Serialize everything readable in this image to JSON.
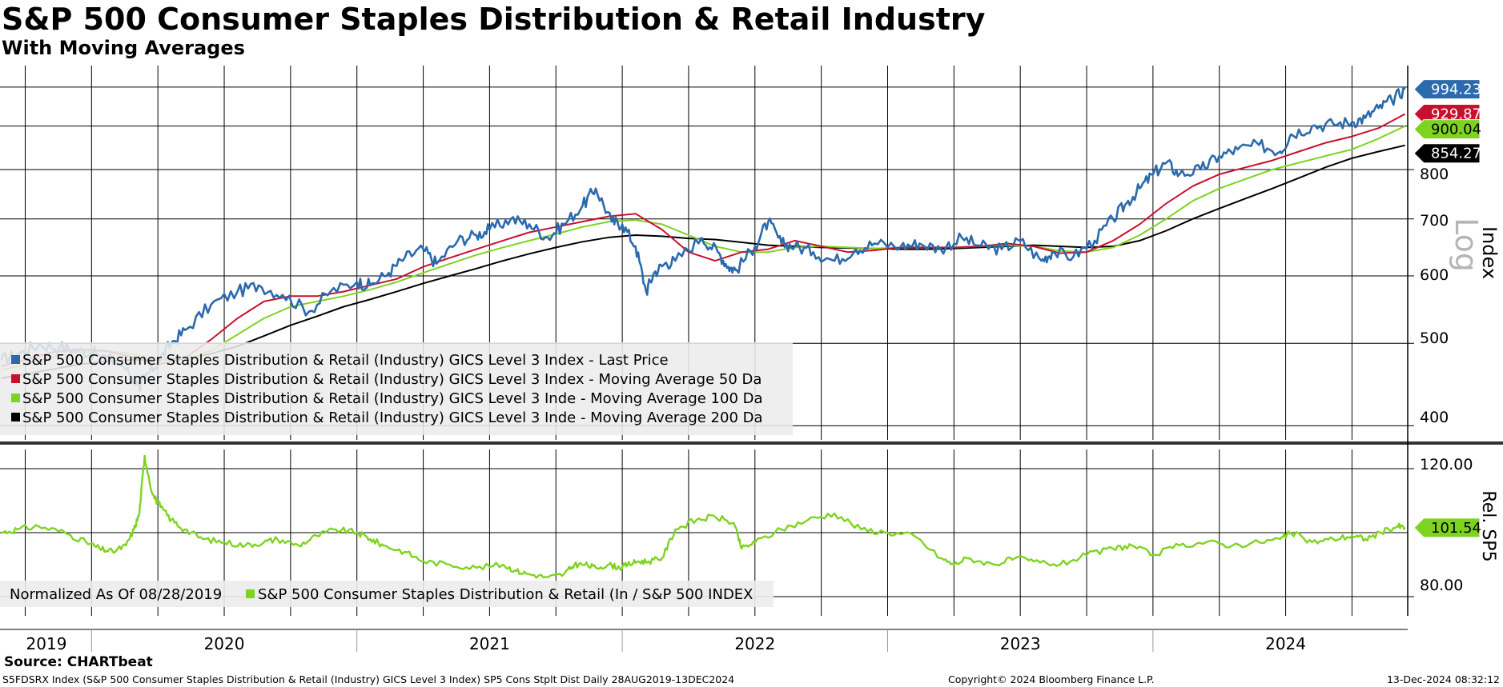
{
  "colors": {
    "last_price": "#2a6aad",
    "ma50": "#c8102e",
    "ma100": "#7ed321",
    "ma200": "#000000",
    "relative": "#7ed321",
    "grid": "#000000",
    "legend_bg": "#ececec"
  },
  "header": {
    "title": "S&P 500 Consumer Staples Distribution & Retail Industry",
    "subtitle": "With Moving Averages"
  },
  "footer": {
    "source": "Source: CHARTbeat",
    "description": "S5FDSRX Index (S&P 500 Consumer Staples Distribution & Retail (Industry) GICS Level 3 Index) SP5 Cons Stplt Dist  Daily 28AUG2019-13DEC2024",
    "copyright": "Copyright© 2024 Bloomberg Finance L.P.",
    "timestamp": "13-Dec-2024 08:32:12"
  },
  "chart_data": [
    {
      "type": "line",
      "panel": "upper",
      "title": "S&P 500 Consumer Staples Distribution & Retail Industry",
      "scale": "log",
      "scale_label": "Log",
      "ylabel": "Index",
      "ylim": [
        385,
        1060
      ],
      "yticks": [
        "400",
        "500",
        "600",
        "700",
        "800"
      ],
      "xrange": [
        2019.655,
        2024.96
      ],
      "year_labels": [
        "2019",
        "2020",
        "2021",
        "2022",
        "2023",
        "2024"
      ],
      "year_label_positions": [
        2019.83,
        2020.5,
        2021.5,
        2022.5,
        2023.5,
        2024.5
      ],
      "year_boundaries": [
        2020.0,
        2021.0,
        2022.0,
        2023.0,
        2024.0
      ],
      "quarter_grid": [
        2019.75,
        2020.0,
        2020.25,
        2020.5,
        2020.75,
        2021.0,
        2021.25,
        2021.5,
        2021.75,
        2022.0,
        2022.25,
        2022.5,
        2022.75,
        2023.0,
        2023.25,
        2023.5,
        2023.75,
        2024.0,
        2024.25,
        2024.5,
        2024.75
      ],
      "legend": [
        "S&P 500 Consumer Staples Distribution & Retail (Industry) GICS Level 3 Index - Last Price",
        "S&P 500 Consumer Staples Distribution & Retail (Industry) GICS Level 3 Index - Moving Average 50 Da",
        "S&P 500 Consumer Staples Distribution & Retail (Industry) GICS Level 3 Inde - Moving Average 100 Da",
        "S&P 500 Consumer Staples Distribution & Retail (Industry) GICS Level 3 Inde - Moving Average 200 Da"
      ],
      "series": [
        {
          "name": "Last Price",
          "color_key": "last_price",
          "end_label": "994.23",
          "x": [
            2019.66,
            2019.72,
            2019.8,
            2019.88,
            2019.95,
            2020.02,
            2020.12,
            2020.18,
            2020.2,
            2020.25,
            2020.3,
            2020.36,
            2020.45,
            2020.55,
            2020.63,
            2020.72,
            2020.82,
            2020.9,
            2021.0,
            2021.05,
            2021.12,
            2021.18,
            2021.25,
            2021.3,
            2021.38,
            2021.45,
            2021.5,
            2021.58,
            2021.65,
            2021.72,
            2021.78,
            2021.85,
            2021.9,
            2021.96,
            2022.0,
            2022.05,
            2022.09,
            2022.12,
            2022.16,
            2022.2,
            2022.3,
            2022.36,
            2022.4,
            2022.43,
            2022.5,
            2022.55,
            2022.6,
            2022.65,
            2022.72,
            2022.8,
            2022.88,
            2022.95,
            2023.05,
            2023.12,
            2023.2,
            2023.28,
            2023.35,
            2023.43,
            2023.5,
            2023.58,
            2023.62,
            2023.7,
            2023.78,
            2023.85,
            2023.9,
            2023.95,
            2024.0,
            2024.05,
            2024.1,
            2024.18,
            2024.25,
            2024.32,
            2024.4,
            2024.48,
            2024.52,
            2024.6,
            2024.68,
            2024.75,
            2024.8,
            2024.85,
            2024.9,
            2024.95
          ],
          "values": [
            478,
            485,
            498,
            495,
            490,
            486,
            470,
            445,
            455,
            475,
            500,
            520,
            555,
            575,
            585,
            570,
            545,
            575,
            590,
            585,
            605,
            630,
            645,
            620,
            660,
            670,
            680,
            700,
            690,
            665,
            690,
            725,
            760,
            695,
            690,
            650,
            575,
            605,
            620,
            625,
            665,
            640,
            615,
            610,
            650,
            695,
            655,
            650,
            640,
            625,
            645,
            655,
            650,
            655,
            645,
            665,
            650,
            645,
            660,
            625,
            640,
            632,
            660,
            700,
            730,
            760,
            790,
            815,
            790,
            800,
            830,
            845,
            855,
            840,
            880,
            900,
            905,
            910,
            920,
            945,
            965,
            994.23
          ]
        },
        {
          "name": "Moving Average 50 Days",
          "color_key": "ma50",
          "end_label": "929.87",
          "x": [
            2019.66,
            2019.75,
            2019.85,
            2019.95,
            2020.05,
            2020.15,
            2020.25,
            2020.35,
            2020.45,
            2020.55,
            2020.65,
            2020.75,
            2020.85,
            2020.95,
            2021.05,
            2021.15,
            2021.25,
            2021.35,
            2021.45,
            2021.55,
            2021.65,
            2021.75,
            2021.85,
            2021.95,
            2022.05,
            2022.15,
            2022.25,
            2022.35,
            2022.45,
            2022.55,
            2022.65,
            2022.75,
            2022.85,
            2022.95,
            2023.05,
            2023.15,
            2023.25,
            2023.35,
            2023.45,
            2023.55,
            2023.65,
            2023.75,
            2023.85,
            2023.95,
            2024.05,
            2024.15,
            2024.25,
            2024.35,
            2024.45,
            2024.55,
            2024.65,
            2024.75,
            2024.85,
            2024.95
          ],
          "values": [
            470,
            478,
            488,
            492,
            490,
            482,
            472,
            480,
            505,
            535,
            560,
            568,
            568,
            575,
            585,
            595,
            615,
            630,
            645,
            660,
            675,
            685,
            695,
            705,
            710,
            680,
            640,
            625,
            640,
            645,
            660,
            650,
            640,
            643,
            648,
            648,
            648,
            650,
            655,
            650,
            638,
            640,
            660,
            690,
            730,
            765,
            790,
            805,
            820,
            840,
            860,
            875,
            895,
            929.87
          ]
        },
        {
          "name": "Moving Average 100 Days",
          "color_key": "ma100",
          "end_label": "900.04",
          "x": [
            2019.66,
            2019.75,
            2019.85,
            2019.95,
            2020.05,
            2020.15,
            2020.25,
            2020.35,
            2020.45,
            2020.55,
            2020.65,
            2020.75,
            2020.85,
            2020.95,
            2021.05,
            2021.15,
            2021.25,
            2021.35,
            2021.45,
            2021.55,
            2021.65,
            2021.75,
            2021.85,
            2021.95,
            2022.05,
            2022.15,
            2022.25,
            2022.35,
            2022.45,
            2022.55,
            2022.65,
            2022.75,
            2022.85,
            2022.95,
            2023.05,
            2023.15,
            2023.25,
            2023.35,
            2023.45,
            2023.55,
            2023.65,
            2023.75,
            2023.85,
            2023.95,
            2024.05,
            2024.15,
            2024.25,
            2024.35,
            2024.45,
            2024.55,
            2024.65,
            2024.75,
            2024.85,
            2024.95
          ],
          "values": [
            465,
            472,
            482,
            488,
            490,
            486,
            478,
            478,
            490,
            512,
            535,
            552,
            560,
            568,
            578,
            590,
            605,
            620,
            635,
            648,
            660,
            672,
            685,
            695,
            698,
            690,
            670,
            650,
            640,
            640,
            648,
            650,
            648,
            646,
            648,
            648,
            648,
            650,
            652,
            650,
            642,
            640,
            648,
            670,
            700,
            735,
            760,
            780,
            800,
            815,
            830,
            845,
            870,
            900.04
          ]
        },
        {
          "name": "Moving Average 200 Days",
          "color_key": "ma200",
          "end_label": "854.27",
          "x": [
            2019.66,
            2019.75,
            2019.85,
            2019.95,
            2020.05,
            2020.15,
            2020.25,
            2020.35,
            2020.45,
            2020.55,
            2020.65,
            2020.75,
            2020.85,
            2020.95,
            2021.05,
            2021.15,
            2021.25,
            2021.35,
            2021.45,
            2021.55,
            2021.65,
            2021.75,
            2021.85,
            2021.95,
            2022.05,
            2022.15,
            2022.25,
            2022.35,
            2022.45,
            2022.55,
            2022.65,
            2022.75,
            2022.85,
            2022.95,
            2023.05,
            2023.15,
            2023.25,
            2023.35,
            2023.45,
            2023.55,
            2023.65,
            2023.75,
            2023.85,
            2023.95,
            2024.05,
            2024.15,
            2024.25,
            2024.35,
            2024.45,
            2024.55,
            2024.65,
            2024.75,
            2024.85,
            2024.95
          ],
          "values": [
            455,
            460,
            466,
            472,
            476,
            478,
            478,
            480,
            486,
            496,
            510,
            525,
            538,
            552,
            563,
            575,
            588,
            600,
            612,
            625,
            637,
            648,
            658,
            666,
            670,
            668,
            664,
            662,
            657,
            652,
            650,
            648,
            647,
            646,
            645,
            645,
            646,
            648,
            650,
            652,
            650,
            648,
            650,
            660,
            678,
            700,
            720,
            740,
            760,
            782,
            805,
            825,
            840,
            854.27
          ]
        }
      ]
    },
    {
      "type": "line",
      "panel": "lower",
      "title": "Normalized As Of 08/28/2019",
      "ylabel": "Rel. SP5",
      "ylim": [
        74,
        126
      ],
      "yticks": [
        "80.00",
        "120.00"
      ],
      "xrange": [
        2019.655,
        2024.96
      ],
      "legend": [
        "S&P 500 Consumer Staples Distribution & Retail (In / S&P 500 INDEX"
      ],
      "series": [
        {
          "name": "S&P 500 Consumer Staples Distribution & Retail (In / S&P 500 INDEX",
          "color_key": "relative",
          "end_label": "101.54",
          "x": [
            2019.66,
            2019.72,
            2019.8,
            2019.9,
            2019.98,
            2020.03,
            2020.08,
            2020.13,
            2020.16,
            2020.18,
            2020.2,
            2020.23,
            2020.26,
            2020.3,
            2020.35,
            2020.42,
            2020.5,
            2020.58,
            2020.65,
            2020.7,
            2020.78,
            2020.85,
            2020.92,
            2021.0,
            2021.05,
            2021.1,
            2021.18,
            2021.25,
            2021.35,
            2021.45,
            2021.55,
            2021.6,
            2021.65,
            2021.72,
            2021.78,
            2021.82,
            2021.86,
            2021.9,
            2021.95,
            2021.99,
            2022.02,
            2022.06,
            2022.1,
            2022.15,
            2022.2,
            2022.28,
            2022.35,
            2022.42,
            2022.45,
            2022.5,
            2022.6,
            2022.7,
            2022.8,
            2022.9,
            2023.0,
            2023.1,
            2023.2,
            2023.25,
            2023.3,
            2023.4,
            2023.48,
            2023.55,
            2023.65,
            2023.75,
            2023.85,
            2023.92,
            2024.0,
            2024.1,
            2024.2,
            2024.3,
            2024.4,
            2024.48,
            2024.52,
            2024.6,
            2024.68,
            2024.75,
            2024.8,
            2024.86,
            2024.92,
            2024.95
          ],
          "values": [
            100,
            101,
            102,
            100,
            97,
            95,
            94,
            96,
            101,
            106,
            124,
            112,
            108,
            104,
            101,
            98,
            97,
            96,
            97,
            98,
            96,
            99,
            101,
            100,
            98,
            96,
            94,
            91,
            90,
            89,
            90,
            88,
            87,
            86,
            87,
            90,
            90,
            89,
            90,
            89,
            90,
            91,
            91,
            92,
            101,
            104,
            105,
            103,
            95,
            97,
            101,
            104,
            106,
            101,
            100,
            99,
            92,
            90,
            92,
            90,
            92,
            91,
            90,
            93,
            95,
            96,
            93,
            96,
            97,
            96,
            97,
            98,
            100,
            97,
            98,
            99,
            98,
            100,
            102,
            101.54
          ]
        }
      ]
    }
  ]
}
